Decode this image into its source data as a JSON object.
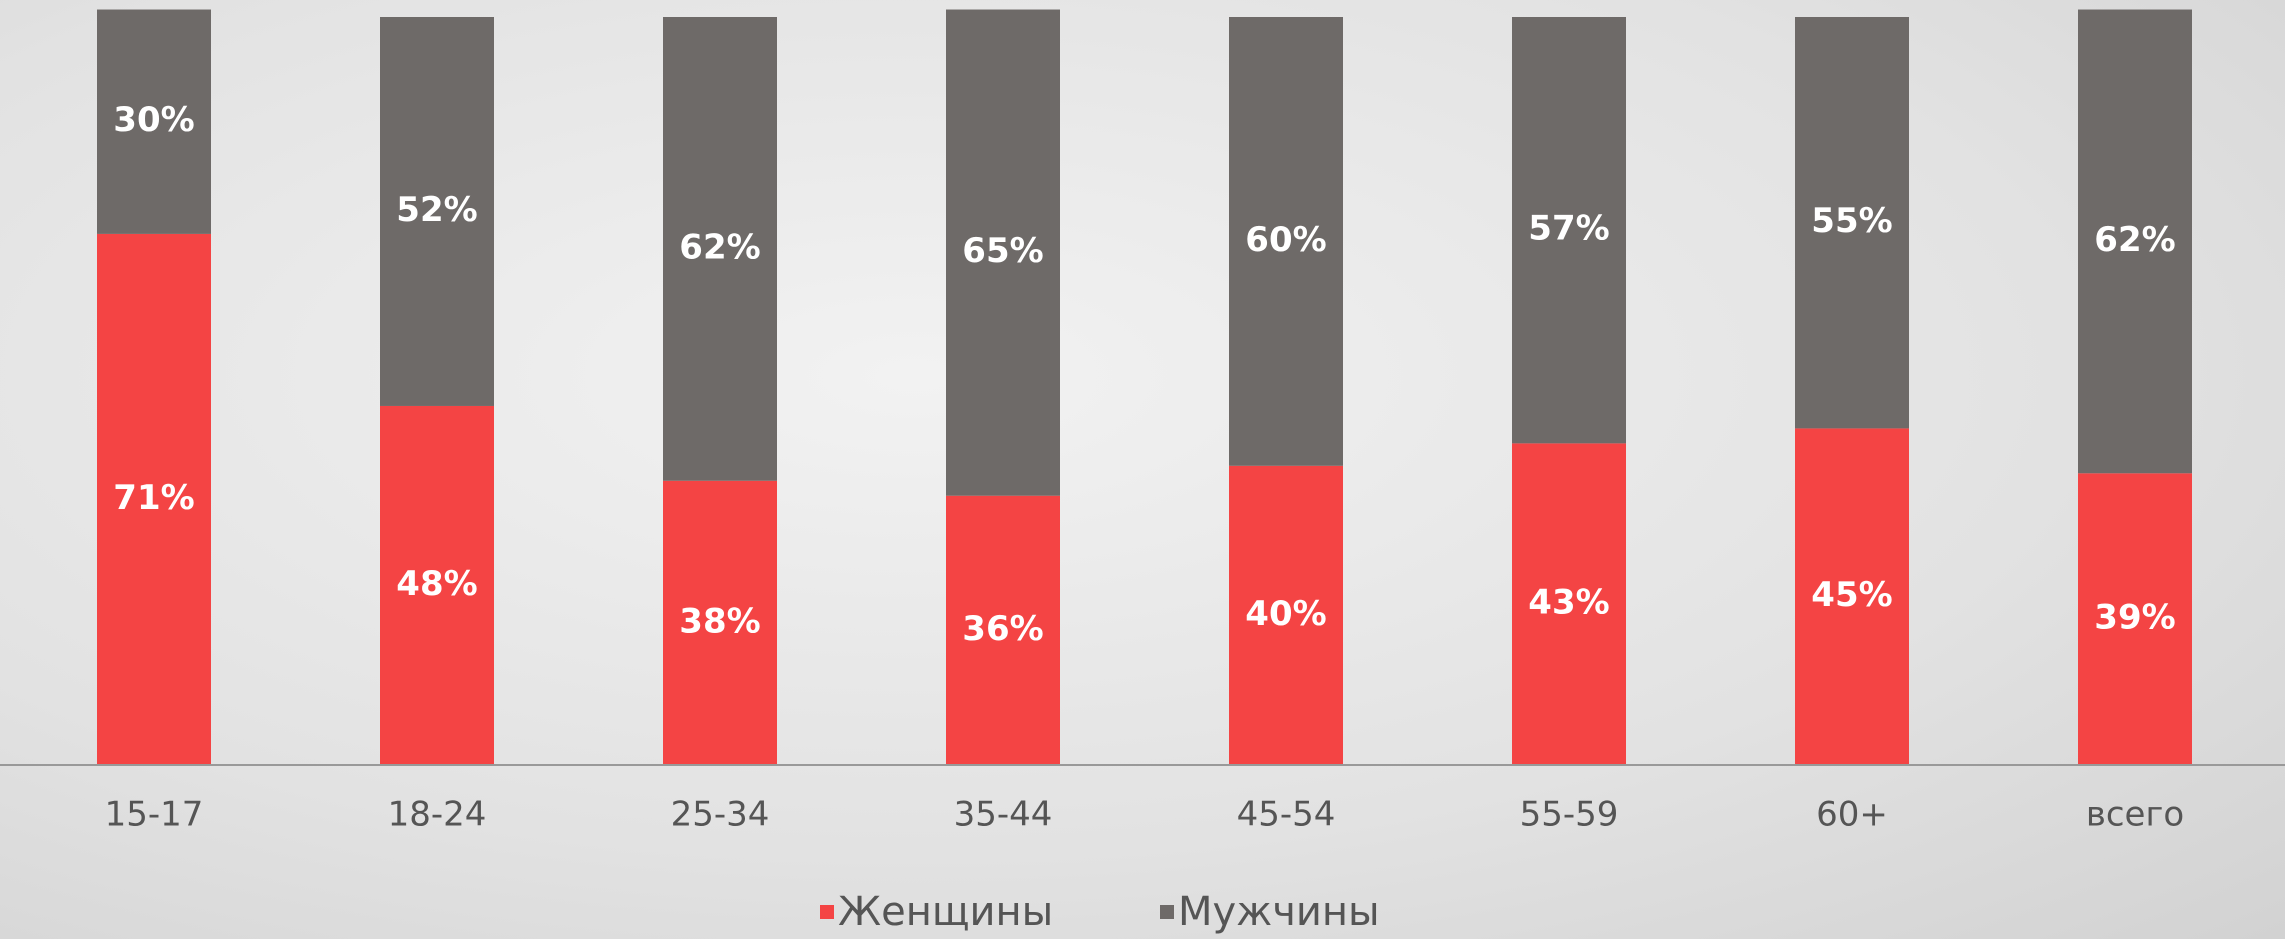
{
  "chart_data": {
    "type": "stacked_bar",
    "categories": [
      "15-17",
      "18-24",
      "25-34",
      "35-44",
      "45-54",
      "55-59",
      "60+",
      "всего"
    ],
    "series": [
      {
        "name": "Женщины",
        "color": "#f44444",
        "values": [
          71,
          48,
          38,
          36,
          40,
          43,
          45,
          39
        ],
        "value_labels": [
          "71%",
          "48%",
          "38%",
          "36%",
          "40%",
          "43%",
          "45%",
          "39%"
        ]
      },
      {
        "name": "Мужчины",
        "color": "#6e6a68",
        "values": [
          30,
          52,
          62,
          65,
          60,
          57,
          55,
          62
        ],
        "value_labels": [
          "30%",
          "52%",
          "62%",
          "65%",
          "60%",
          "57%",
          "55%",
          "62%"
        ]
      }
    ],
    "ylim": [
      0,
      100
    ],
    "legend": "bottom"
  }
}
